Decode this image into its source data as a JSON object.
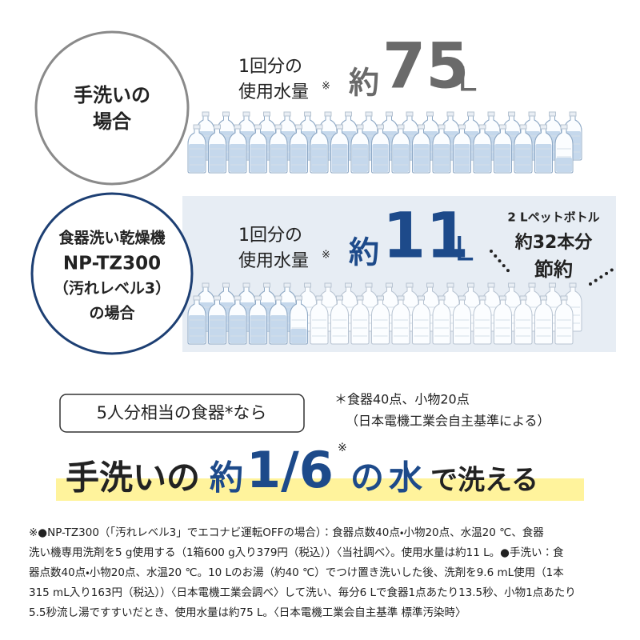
{
  "hand_wash": {
    "circle_label": [
      "手洗いの",
      "場合"
    ],
    "amount_label": [
      "1回分の",
      "使用水量"
    ],
    "note_mark": "※",
    "prefix": "約",
    "amount": "75",
    "unit": "L"
  },
  "dishwasher": {
    "circle_label": [
      "食器洗い乾燥機",
      "NP-TZ300",
      "（汚れレベル3）",
      "の場合"
    ],
    "amount_label": [
      "1回分の",
      "使用水量"
    ],
    "note_mark": "※",
    "prefix": "約",
    "amount": "11",
    "unit": "L",
    "savings": [
      "2 Lペットボトル",
      "約32本分",
      "節約"
    ]
  },
  "condition": {
    "box": "5人分相当の食器*なら",
    "note": [
      "＊食器40点、小物20点",
      "（日本電機工業会自主基準による）"
    ]
  },
  "headline": {
    "part1": "手洗いの",
    "prefix": "約",
    "ratio": "1/6",
    "note_mark": "※",
    "part2": "の",
    "water": "水",
    "part3": "で洗える"
  },
  "footnote": [
    "※●NP-TZ300（「汚れレベル3」でエコナビ運転OFFの場合）：食器点数40点・小物20点、水温20 ℃、食器",
    "洗い機専用洗剤を5 g使用する（1箱600 g入り379円（税込））〈当社調べ〉。使用水量は約11 L。●手洗い：食",
    "器点数40点・小物20点、水温20 ℃。10 Lのお湯（約40 ℃）でつけ置き洗いした後、洗剤を9.6 mL使用（1本",
    "315 mL入り163円（税込））〈日本電機工業会調べ〉して洗い、毎分6 Lで食器1点あたり13.5秒、小物1点あたり",
    "5.5秒流し湯ですすいだとき、使用水量は約75 L。〈日本電機工業会自主基準 標準汚染時〉"
  ]
}
